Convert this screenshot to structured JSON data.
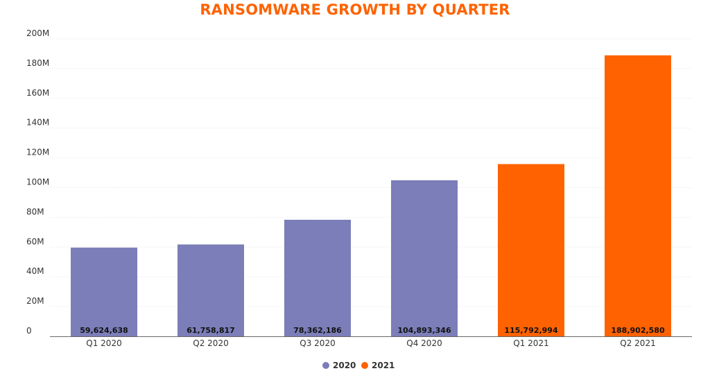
{
  "chart_data": {
    "type": "bar",
    "title": "RANSOMWARE GROWTH BY QUARTER",
    "title_color": "#ff6200",
    "categories": [
      "Q1 2020",
      "Q2 2020",
      "Q3 2020",
      "Q4 2020",
      "Q1 2021",
      "Q2 2021"
    ],
    "values": [
      59624638,
      61758817,
      78362186,
      104893346,
      115792994,
      188902580
    ],
    "value_labels": [
      "59,624,638",
      "61,758,817",
      "78,362,186",
      "104,893,346",
      "115,792,994",
      "188,902,580"
    ],
    "bar_series": [
      "2020",
      "2020",
      "2020",
      "2020",
      "2021",
      "2021"
    ],
    "series": [
      {
        "name": "2020",
        "color": "#7b7eb8"
      },
      {
        "name": "2021",
        "color": "#ff6200"
      }
    ],
    "yticks": [
      {
        "value": 0,
        "label": "0"
      },
      {
        "value": 20000000,
        "label": "20M"
      },
      {
        "value": 40000000,
        "label": "40M"
      },
      {
        "value": 60000000,
        "label": "60M"
      },
      {
        "value": 80000000,
        "label": "80M"
      },
      {
        "value": 100000000,
        "label": "100M"
      },
      {
        "value": 120000000,
        "label": "120M"
      },
      {
        "value": 140000000,
        "label": "140M"
      },
      {
        "value": 160000000,
        "label": "160M"
      },
      {
        "value": 180000000,
        "label": "180M"
      },
      {
        "value": 200000000,
        "label": "200M"
      }
    ],
    "ylim": [
      0,
      200000000
    ],
    "xlabel": "",
    "ylabel": "",
    "grid": true,
    "legend_position": "bottom-center"
  }
}
